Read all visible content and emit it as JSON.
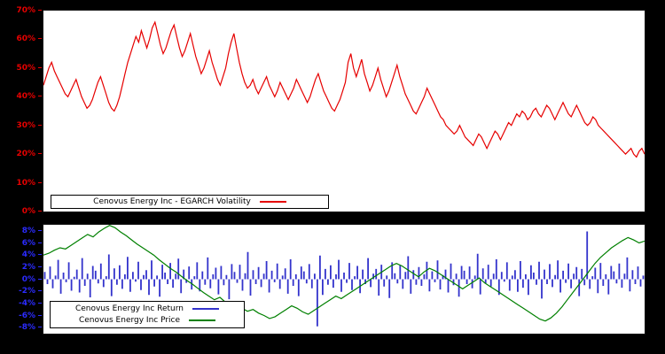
{
  "page": {
    "background": "#000000",
    "plot_background": "#ffffff"
  },
  "chart_data": [
    {
      "type": "line",
      "title": "",
      "xlabel": "",
      "ylabel": "",
      "unit": "%",
      "ylim": [
        0,
        70
      ],
      "grid": false,
      "legend_position": "bottom-left",
      "axis_label_color": "#e60000",
      "yticks": {
        "values": [
          0,
          10,
          20,
          30,
          40,
          50,
          60,
          70
        ],
        "labels": [
          "0%",
          "10%",
          "20%",
          "30%",
          "40%",
          "50%",
          "60%",
          "70%"
        ]
      },
      "series": [
        {
          "name": "Cenovus Energy Inc - EGARCH Volatility",
          "type": "line",
          "color": "#e60000",
          "values": [
            44,
            47,
            50,
            52,
            49,
            47,
            45,
            43,
            41,
            40,
            42,
            44,
            46,
            43,
            40,
            38,
            36,
            37,
            39,
            42,
            45,
            47,
            44,
            41,
            38,
            36,
            35,
            37,
            40,
            44,
            48,
            52,
            55,
            58,
            61,
            59,
            63,
            60,
            57,
            60,
            64,
            66,
            62,
            58,
            55,
            57,
            60,
            63,
            65,
            61,
            57,
            54,
            56,
            59,
            62,
            58,
            54,
            51,
            48,
            50,
            53,
            56,
            52,
            49,
            46,
            44,
            47,
            50,
            55,
            59,
            62,
            57,
            52,
            48,
            45,
            43,
            44,
            46,
            43,
            41,
            43,
            45,
            47,
            44,
            42,
            40,
            42,
            45,
            43,
            41,
            39,
            41,
            43,
            46,
            44,
            42,
            40,
            38,
            40,
            43,
            46,
            48,
            45,
            42,
            40,
            38,
            36,
            35,
            37,
            39,
            42,
            45,
            52,
            55,
            50,
            47,
            50,
            53,
            48,
            45,
            42,
            44,
            47,
            50,
            46,
            43,
            40,
            42,
            45,
            48,
            51,
            47,
            44,
            41,
            39,
            37,
            35,
            34,
            36,
            38,
            40,
            43,
            41,
            39,
            37,
            35,
            33,
            32,
            30,
            29,
            28,
            27,
            28,
            30,
            28,
            26,
            25,
            24,
            23,
            25,
            27,
            26,
            24,
            22,
            24,
            26,
            28,
            27,
            25,
            27,
            29,
            31,
            30,
            32,
            34,
            33,
            35,
            34,
            32,
            33,
            35,
            36,
            34,
            33,
            35,
            37,
            36,
            34,
            32,
            34,
            36,
            38,
            36,
            34,
            33,
            35,
            37,
            35,
            33,
            31,
            30,
            31,
            33,
            32,
            30,
            29,
            28,
            27,
            26,
            25,
            24,
            23,
            22,
            21,
            20,
            21,
            22,
            20,
            19,
            21,
            22,
            20
          ]
        }
      ]
    },
    {
      "type": "bar",
      "title": "",
      "xlabel": "",
      "ylabel": "",
      "unit": "%",
      "ylim": [
        -9,
        9
      ],
      "grid": false,
      "legend_position": "bottom-left",
      "axis_label_color": "#2b2bff",
      "yticks": {
        "values": [
          8,
          6,
          4,
          2,
          0,
          -2,
          -4,
          -6,
          -8
        ],
        "labels": [
          "8%",
          "6%",
          "4%",
          "2%",
          "0%",
          "-2%",
          "-4%",
          "-6%",
          "-8%"
        ]
      },
      "series": [
        {
          "name": "Cenovus Energy Inc Return",
          "type": "bar",
          "color": "#3333cc",
          "values": [
            1.2,
            -0.8,
            2.1,
            -1.5,
            0.6,
            3.2,
            -2.4,
            1.1,
            -0.5,
            2.8,
            -1.9,
            0.4,
            1.6,
            -2.2,
            3.5,
            -1.1,
            0.9,
            -3.0,
            2.2,
            1.4,
            -0.7,
            2.6,
            -1.3,
            0.5,
            4.1,
            -2.8,
            1.8,
            -0.9,
            2.3,
            -1.6,
            0.8,
            3.7,
            -2.1,
            1.2,
            -0.4,
            2.9,
            -1.8,
            0.7,
            1.5,
            -2.6,
            3.1,
            -1.2,
            0.6,
            -2.9,
            2.4,
            1.1,
            -0.8,
            2.7,
            -1.4,
            0.9,
            3.4,
            -2.3,
            1.6,
            -0.6,
            2.1,
            -1.7,
            0.5,
            2.8,
            -2.0,
            1.3,
            -0.9,
            3.6,
            -1.5,
            0.8,
            1.9,
            -2.5,
            2.2,
            -1.0,
            0.7,
            -3.3,
            2.5,
            1.2,
            -0.6,
            2.4,
            -1.9,
            1.0,
            4.5,
            -2.7,
            1.5,
            -0.8,
            2.0,
            -1.3,
            0.9,
            3.0,
            -2.2,
            1.4,
            -0.5,
            2.6,
            -1.6,
            0.6,
            1.8,
            -2.4,
            3.3,
            -1.1,
            0.8,
            -2.8,
            2.1,
            1.3,
            -0.7,
            2.5,
            -1.5,
            0.9,
            -7.8,
            3.9,
            -2.6,
            1.7,
            -0.9,
            2.3,
            -1.4,
            0.8,
            3.2,
            -2.1,
            1.1,
            -0.6,
            2.7,
            -1.8,
            0.5,
            2.2,
            -2.3,
            1.6,
            -0.8,
            3.5,
            -1.3,
            0.9,
            1.7,
            -2.7,
            2.4,
            -1.2,
            0.6,
            -3.1,
            2.8,
            1.0,
            -0.7,
            2.3,
            -1.6,
            1.2,
            3.8,
            -2.4,
            1.5,
            -0.9,
            2.0,
            -1.1,
            0.8,
            2.9,
            -2.0,
            1.3,
            -0.5,
            3.1,
            -1.7,
            0.7,
            1.6,
            -2.2,
            2.6,
            -1.0,
            0.9,
            -2.9,
            2.2,
            1.4,
            -0.8,
            2.1,
            -1.5,
            0.6,
            4.2,
            -2.5,
            1.8,
            -0.7,
            2.4,
            -1.2,
            0.9,
            3.3,
            -2.6,
            1.2,
            -0.4,
            2.8,
            -1.9,
            0.6,
            1.5,
            -2.1,
            3.0,
            -1.4,
            0.8,
            -2.6,
            2.3,
            1.1,
            -0.9,
            2.9,
            -3.2,
            1.6,
            -0.8,
            2.5,
            -1.3,
            0.7,
            3.1,
            -2.2,
            1.4,
            -0.6,
            2.6,
            -1.5,
            0.9,
            2.0,
            -2.8,
            1.7,
            -1.0,
            7.9,
            -1.6,
            0.5,
            1.9,
            -2.3,
            2.7,
            -1.1,
            0.8,
            -2.5,
            2.2,
            1.3,
            -0.7,
            2.6,
            -1.4,
            0.9,
            3.6,
            -2.0,
            1.5,
            -0.8,
            2.1,
            -1.2,
            0.6
          ]
        },
        {
          "name": "Cenovus Energy Inc Price",
          "type": "line",
          "color": "#008000",
          "values": [
            4.0,
            4.3,
            4.8,
            5.2,
            5.0,
            5.6,
            6.2,
            6.8,
            7.4,
            7.0,
            7.8,
            8.4,
            8.9,
            8.5,
            7.8,
            7.2,
            6.5,
            5.8,
            5.2,
            4.6,
            4.0,
            3.2,
            2.5,
            1.8,
            1.2,
            0.5,
            -0.2,
            -0.8,
            -1.5,
            -2.2,
            -2.8,
            -3.4,
            -3.0,
            -3.8,
            -4.4,
            -4.0,
            -4.8,
            -5.3,
            -5.0,
            -5.6,
            -6.0,
            -6.5,
            -6.2,
            -5.6,
            -5.0,
            -4.4,
            -4.8,
            -5.4,
            -5.8,
            -5.2,
            -4.6,
            -4.0,
            -3.4,
            -2.8,
            -3.2,
            -2.6,
            -2.0,
            -1.4,
            -0.8,
            -0.2,
            0.4,
            1.0,
            1.6,
            2.2,
            2.6,
            2.2,
            1.6,
            1.0,
            0.4,
            1.2,
            1.8,
            1.4,
            0.8,
            0.2,
            -0.4,
            -1.0,
            -1.6,
            -1.0,
            -0.4,
            0.2,
            -0.6,
            -1.2,
            -1.8,
            -2.4,
            -3.0,
            -3.6,
            -4.2,
            -4.8,
            -5.4,
            -6.0,
            -6.6,
            -6.9,
            -6.4,
            -5.6,
            -4.6,
            -3.4,
            -2.2,
            -1.0,
            0.2,
            1.4,
            2.6,
            3.6,
            4.4,
            5.2,
            5.8,
            6.4,
            6.9,
            6.5,
            6.0,
            6.3
          ]
        }
      ]
    }
  ]
}
